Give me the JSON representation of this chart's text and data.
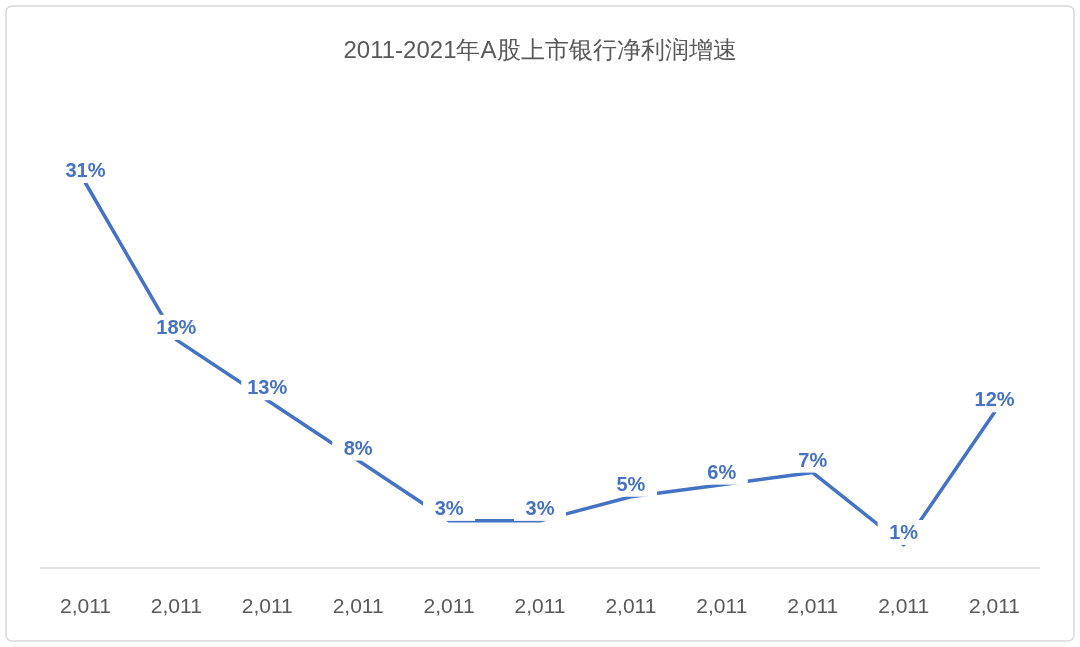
{
  "chart_data": {
    "type": "line",
    "title": "2011-2021年A股上市银行净利润增速",
    "categories": [
      "2,011",
      "2,011",
      "2,011",
      "2,011",
      "2,011",
      "2,011",
      "2,011",
      "2,011",
      "2,011",
      "2,011",
      "2,011"
    ],
    "series": [
      {
        "color": "#4472c4",
        "values": [
          31,
          18,
          13,
          8,
          3,
          3,
          5,
          6,
          7,
          1,
          12
        ],
        "value_labels": [
          "31%",
          "18%",
          "13%",
          "8%",
          "3%",
          "3%",
          "5%",
          "6%",
          "7%",
          "1%",
          "12%"
        ]
      }
    ],
    "marker": "none"
  }
}
